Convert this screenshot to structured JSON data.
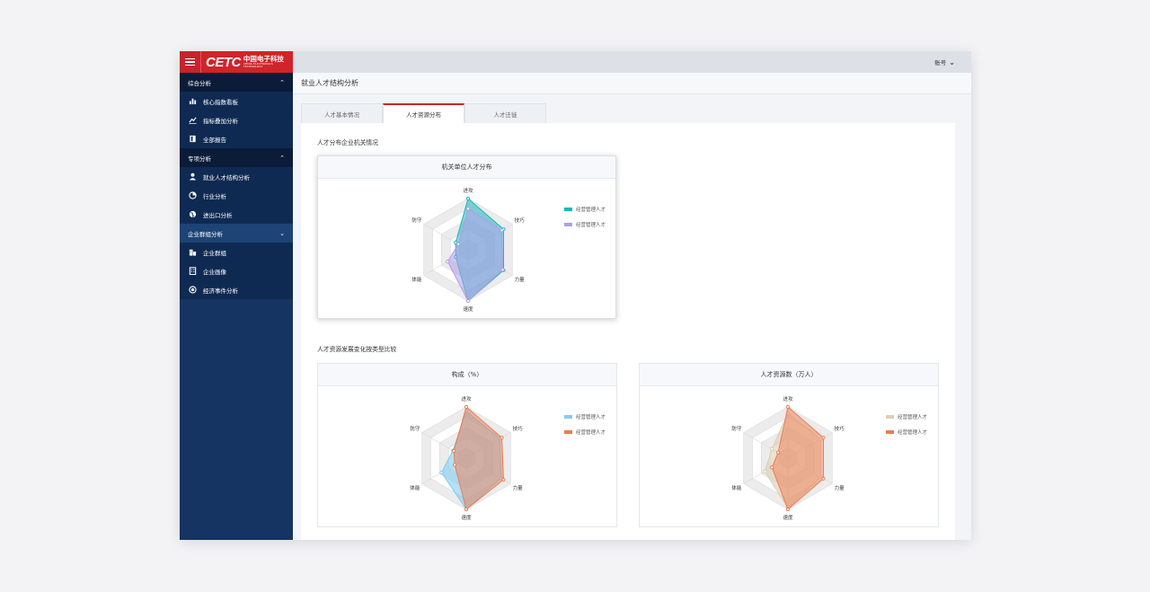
{
  "app": {
    "logo_text": "CETC",
    "logo_cn": "中国电子科技",
    "logo_en": "CHINA ELECTRONICS TECHNOLOGY"
  },
  "sidebar": {
    "groups": [
      {
        "label": "综合分析",
        "expanded": true,
        "items": [
          {
            "label": "核心指数看板",
            "icon": "bar-chart-icon"
          },
          {
            "label": "指标叠加分析",
            "icon": "line-chart-icon"
          },
          {
            "label": "全部报告",
            "icon": "book-icon"
          }
        ]
      },
      {
        "label": "专项分析",
        "expanded": true,
        "items": [
          {
            "label": "就业人才结构分析",
            "icon": "user-icon"
          },
          {
            "label": "行业分析",
            "icon": "pie-chart-icon"
          },
          {
            "label": "进出口分析",
            "icon": "globe-icon"
          }
        ]
      },
      {
        "label": "企业群组分析",
        "expanded": true,
        "items": [
          {
            "label": "企业群组",
            "icon": "buildings-icon"
          },
          {
            "label": "企业画像",
            "icon": "building-icon"
          },
          {
            "label": "经济事件分析",
            "icon": "target-icon"
          }
        ]
      }
    ]
  },
  "topbar": {
    "account_label": "账号"
  },
  "page": {
    "title": "就业人才结构分析"
  },
  "tabs": [
    {
      "label": "人才基本情况",
      "active": false
    },
    {
      "label": "人才资源分布",
      "active": true
    },
    {
      "label": "人才迁徙",
      "active": false
    }
  ],
  "sections": {
    "dist_title": "人才分布企业机关情况",
    "compare_title": "人才资源发展变化按类型比较"
  },
  "colors": {
    "brand_red": "#d1232a",
    "sidebar_bg": "#153462",
    "teal": "#1fb5bd",
    "purple": "#b09ee6",
    "light_blue": "#82cdee",
    "orange": "#ee7b52",
    "beige": "#dccfb4"
  },
  "chart_data": [
    {
      "type": "radar",
      "title": "机关单位人才分布",
      "axes": [
        "进攻",
        "技巧",
        "力量",
        "速度",
        "体能",
        "防守"
      ],
      "max": 5,
      "series": [
        {
          "name": "经营管理人才",
          "color": "#1fb5bd",
          "values": [
            5,
            4,
            4,
            5,
            1.4,
            1.4
          ],
          "fill_opacity": 0.55
        },
        {
          "name": "经营管理人才",
          "color": "#b09ee6",
          "values": [
            4,
            3.8,
            3.9,
            5,
            2.3,
            1.1
          ],
          "fill_opacity": 0.55
        }
      ]
    },
    {
      "type": "radar",
      "title": "构成（%）",
      "axes": [
        "进攻",
        "技巧",
        "力量",
        "速度",
        "体能",
        "防守"
      ],
      "max": 5,
      "series": [
        {
          "name": "经营管理人才",
          "color": "#82cdee",
          "values": [
            4.6,
            3.8,
            3.9,
            5,
            2.8,
            1.5
          ],
          "fill_opacity": 0.6
        },
        {
          "name": "经营管理人才",
          "color": "#ee7b52",
          "values": [
            5,
            4,
            4.2,
            5,
            1.3,
            1.4
          ],
          "fill_opacity": 0.5
        }
      ]
    },
    {
      "type": "radar",
      "title": "人才资源数（万人）",
      "axes": [
        "进攻",
        "技巧",
        "力量",
        "速度",
        "体能",
        "防守"
      ],
      "max": 5,
      "series": [
        {
          "name": "经营管理人才",
          "color": "#dccfb4",
          "values": [
            4.4,
            3.7,
            3.7,
            4.9,
            2.6,
            1.8
          ],
          "fill_opacity": 0.6
        },
        {
          "name": "经营管理人才",
          "color": "#ee7b52",
          "values": [
            5,
            4,
            4,
            5,
            1.8,
            1.1
          ],
          "fill_opacity": 0.5
        }
      ]
    }
  ]
}
